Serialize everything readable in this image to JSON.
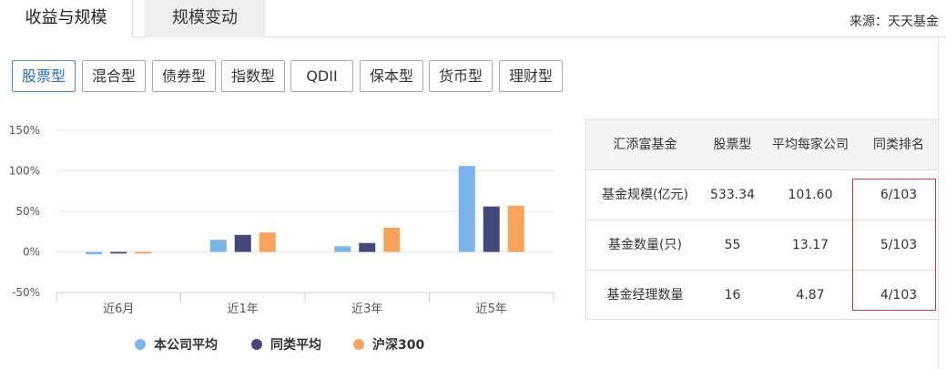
{
  "tabs": [
    {
      "label": "收益与规模",
      "active": true
    },
    {
      "label": "规模变动",
      "active": false
    }
  ],
  "source": "来源：天天基金",
  "fund_types": [
    {
      "label": "股票型",
      "active": true
    },
    {
      "label": "混合型",
      "active": false
    },
    {
      "label": "债券型",
      "active": false
    },
    {
      "label": "指数型",
      "active": false
    },
    {
      "label": "QDII",
      "active": false
    },
    {
      "label": "保本型",
      "active": false
    },
    {
      "label": "货币型",
      "active": false
    },
    {
      "label": "理财型",
      "active": false
    }
  ],
  "chart_data": {
    "type": "bar",
    "categories": [
      "近6月",
      "近1年",
      "近3年",
      "近5年"
    ],
    "series": [
      {
        "name": "本公司平均",
        "color": "#7cb5ec",
        "values": [
          -3,
          15,
          7,
          106
        ]
      },
      {
        "name": "同类平均",
        "color": "#434878",
        "values": [
          -2,
          21,
          11,
          56
        ]
      },
      {
        "name": "沪深300",
        "color": "#f7a35c",
        "values": [
          -2,
          24,
          30,
          57
        ]
      }
    ],
    "y_ticks": [
      "150%",
      "100%",
      "50%",
      "0%",
      "-50%"
    ],
    "y_tick_values": [
      150,
      100,
      50,
      0,
      -50
    ],
    "ylim": [
      -50,
      150
    ],
    "grid": true,
    "legend": "bottom"
  },
  "table": {
    "headers": [
      "汇添富基金",
      "股票型",
      "平均每家公司",
      "同类排名"
    ],
    "rows": [
      [
        "基金规模(亿元)",
        "533.34",
        "101.60",
        "6/103"
      ],
      [
        "基金数量(只)",
        "55",
        "13.17",
        "5/103"
      ],
      [
        "基金经理数量",
        "16",
        "4.87",
        "4/103"
      ]
    ],
    "highlight_color": "#d9353a"
  }
}
